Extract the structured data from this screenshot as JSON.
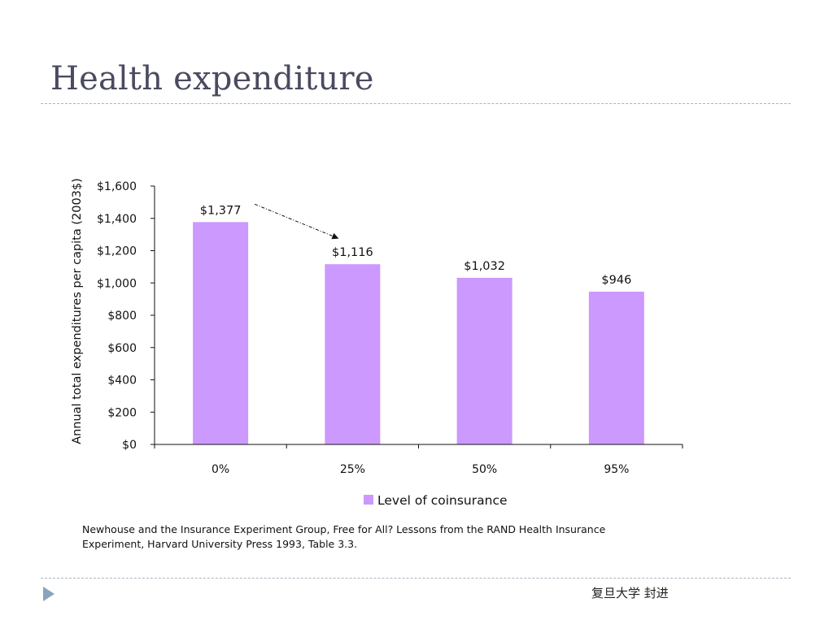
{
  "slide": {
    "title": "Health expenditure",
    "source_line1": "Newhouse and the Insurance Experiment Group, Free for All? Lessons from the RAND Health Insurance",
    "source_line2": "Experiment, Harvard University Press 1993, Table 3.3.",
    "footer": "复旦大学  封进"
  },
  "colors": {
    "bar": "#cc99ff",
    "title": "#4a4b60",
    "rule": "#a8b5c4",
    "nav_icon": "#8ba3bf"
  },
  "icons": {
    "nav": "play-triangle-icon"
  },
  "chart_data": {
    "type": "bar",
    "categories": [
      "0%",
      "25%",
      "50%",
      "95%"
    ],
    "series": [
      {
        "name": "Level of coinsurance",
        "values": [
          1377,
          1116,
          1032,
          946
        ]
      }
    ],
    "data_labels": [
      "$1,377",
      "$1,116",
      "$1,032",
      "$946"
    ],
    "title": "",
    "xlabel": "",
    "ylabel": "Annual total expenditures per capita (2003$)",
    "ylim": [
      0,
      1600
    ],
    "yticks": [
      0,
      200,
      400,
      600,
      800,
      1000,
      1200,
      1400,
      1600
    ],
    "ytick_labels": [
      "$0",
      "$200",
      "$400",
      "$600",
      "$800",
      "$1,000",
      "$1,200",
      "$1,400",
      "$1,600"
    ],
    "grid": false,
    "legend": {
      "position": "bottom",
      "entries": [
        "Level of coinsurance"
      ]
    },
    "annotation": {
      "type": "dotted-arrow",
      "from_category": "0%",
      "to_category": "25%"
    }
  }
}
